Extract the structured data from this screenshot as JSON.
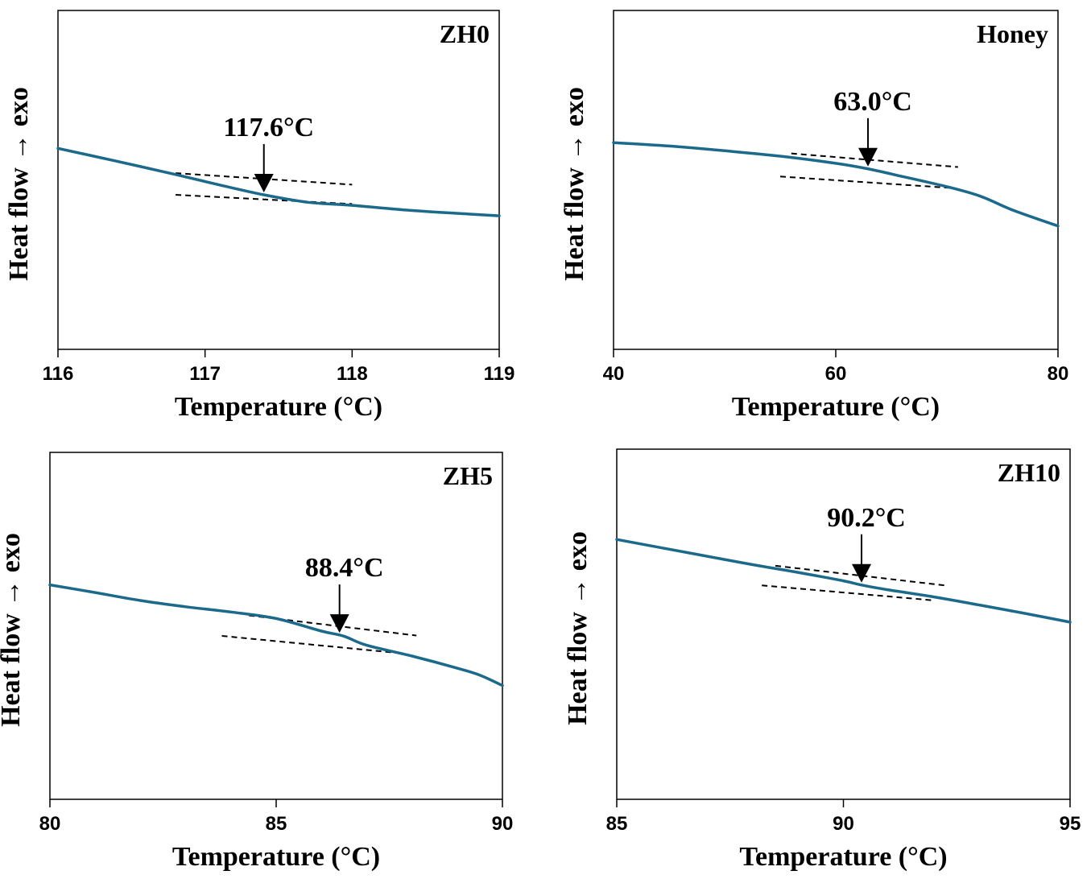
{
  "colors": {
    "curve": "#1b6a8c",
    "axis": "#000000"
  },
  "chart_data": [
    {
      "type": "line",
      "panel": "top-left",
      "sample_label": "ZH0",
      "xlabel": "Temperature (°C)",
      "ylabel": "Heat flow → exo",
      "xlim": [
        116,
        119
      ],
      "ylim": [
        0,
        1
      ],
      "xticks": [
        116,
        117,
        118,
        119
      ],
      "x_tick_labels": [
        "116",
        "117",
        "118",
        "119"
      ],
      "yticks_shown": false,
      "series": [
        {
          "name": "ZH0",
          "x": [
            116.0,
            116.4,
            116.8,
            117.1,
            117.4,
            117.7,
            118.0,
            118.4,
            118.8,
            119.0
          ],
          "y": [
            0.593,
            0.555,
            0.516,
            0.485,
            0.456,
            0.434,
            0.425,
            0.41,
            0.399,
            0.394
          ]
        }
      ],
      "tangents": [
        {
          "x": [
            116.8,
            118.0
          ],
          "y": [
            0.52,
            0.486
          ]
        },
        {
          "x": [
            116.8,
            118.0
          ],
          "y": [
            0.456,
            0.429
          ]
        }
      ],
      "annotation": {
        "text": "117.6°C",
        "x": 117.4
      }
    },
    {
      "type": "line",
      "panel": "top-right",
      "sample_label": "Honey",
      "xlabel": "Temperature (°C)",
      "ylabel": "Heat flow → exo",
      "xlim": [
        40,
        80
      ],
      "ylim": [
        0,
        1
      ],
      "xticks": [
        40,
        60,
        80
      ],
      "x_tick_labels": [
        "40",
        "60",
        "80"
      ],
      "yticks_shown": false,
      "series": [
        {
          "name": "Honey",
          "x": [
            40,
            45,
            50,
            55,
            60,
            63,
            66,
            70,
            73,
            76,
            80
          ],
          "y": [
            0.61,
            0.6,
            0.586,
            0.57,
            0.549,
            0.532,
            0.51,
            0.48,
            0.452,
            0.41,
            0.364
          ]
        }
      ],
      "tangents": [
        {
          "x": [
            56,
            71
          ],
          "y": [
            0.578,
            0.538
          ]
        },
        {
          "x": [
            55,
            70.5
          ],
          "y": [
            0.51,
            0.476
          ]
        }
      ],
      "annotation": {
        "text": "63.0°C",
        "x": 62.9
      }
    },
    {
      "type": "line",
      "panel": "bottom-left",
      "sample_label": "ZH5",
      "xlabel": "Temperature (°C)",
      "ylabel": "Heat flow → exo",
      "xlim": [
        80,
        90
      ],
      "ylim": [
        0,
        1
      ],
      "xticks": [
        80,
        85,
        90
      ],
      "x_tick_labels": [
        "80",
        "85",
        "90"
      ],
      "yticks_shown": false,
      "series": [
        {
          "name": "ZH5",
          "x": [
            80,
            81,
            82,
            83,
            84,
            85,
            86,
            86.5,
            87,
            88,
            89,
            89.5,
            90
          ],
          "y": [
            0.618,
            0.596,
            0.573,
            0.555,
            0.54,
            0.521,
            0.485,
            0.47,
            0.444,
            0.413,
            0.378,
            0.358,
            0.328
          ]
        }
      ],
      "tangents": [
        {
          "x": [
            84.4,
            88.1
          ],
          "y": [
            0.53,
            0.472
          ]
        },
        {
          "x": [
            83.8,
            87.6
          ],
          "y": [
            0.471,
            0.423
          ]
        }
      ],
      "annotation": {
        "text": "88.4°C",
        "x": 86.4
      }
    },
    {
      "type": "line",
      "panel": "bottom-right",
      "sample_label": "ZH10",
      "xlabel": "Temperature (°C)",
      "ylabel": "Heat flow → exo",
      "xlim": [
        85,
        95
      ],
      "ylim": [
        0,
        1
      ],
      "xticks": [
        85,
        90,
        95
      ],
      "x_tick_labels": [
        "85",
        "90",
        "95"
      ],
      "yticks_shown": false,
      "series": [
        {
          "name": "ZH10",
          "x": [
            85,
            86,
            87,
            88,
            89,
            90,
            90.4,
            91,
            92,
            93,
            94,
            95
          ],
          "y": [
            0.742,
            0.718,
            0.694,
            0.67,
            0.648,
            0.624,
            0.612,
            0.598,
            0.578,
            0.555,
            0.531,
            0.506
          ]
        }
      ],
      "tangents": [
        {
          "x": [
            88.5,
            92.3
          ],
          "y": [
            0.667,
            0.61
          ]
        },
        {
          "x": [
            88.2,
            92.0
          ],
          "y": [
            0.611,
            0.568
          ]
        }
      ],
      "annotation": {
        "text": "90.2°C",
        "x": 90.4
      }
    }
  ]
}
